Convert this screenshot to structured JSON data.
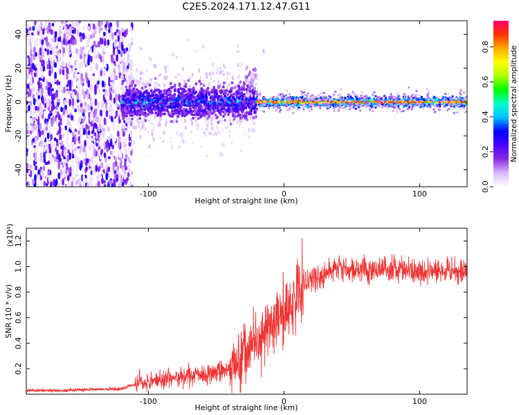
{
  "title": "C2E5.2024.171.12.47.G11",
  "chart_data": [
    {
      "type": "heatmap",
      "xlabel": "Height of straight line (km)",
      "ylabel": "Frequency (Hz)",
      "xlim": [
        -190,
        135
      ],
      "ylim": [
        -50,
        48
      ],
      "xticks": [
        -100,
        0,
        100
      ],
      "xtick_labels": [
        "-100",
        "0",
        "100"
      ],
      "yticks": [
        -40,
        -20,
        0,
        20,
        40
      ],
      "ytick_labels": [
        "-40",
        "-20",
        "0",
        "20",
        "40"
      ],
      "grid": false,
      "colorbar": {
        "label": "Normalized spectral amplitude",
        "range": [
          0,
          0.95
        ],
        "ticks": [
          0.0,
          0.2,
          0.4,
          0.6,
          0.8
        ],
        "tick_labels": [
          "0.0",
          "0.2",
          "0.4",
          "0.6",
          "0.8"
        ],
        "colormap": [
          "#ffffff",
          "#d9b8ff",
          "#8a2be2",
          "#4b00ff",
          "#0000ff",
          "#00bfff",
          "#00ffcc",
          "#00ff00",
          "#aaff00",
          "#ffff00",
          "#ffaa00",
          "#ff3300",
          "#ff0066"
        ]
      },
      "regions": [
        {
          "x_range": [
            -190,
            -112
          ],
          "freq_range": [
            -50,
            48
          ],
          "amplitude": "low, scattered"
        },
        {
          "x_range": [
            -120,
            -20
          ],
          "center_freq": 0,
          "half_width_hz": 7,
          "amplitude": "0.3-0.6"
        },
        {
          "x_range": [
            -20,
            135
          ],
          "center_freq": 0,
          "half_width_hz": 2,
          "amplitude": "0.5-0.9"
        }
      ]
    },
    {
      "type": "line",
      "xlabel": "Height of straight line (km)",
      "ylabel": "SNR (10 * v/v)",
      "y_scale_label": "(x10⁴)",
      "xlim": [
        -190,
        135
      ],
      "ylim": [
        0,
        1.3
      ],
      "xticks": [
        -100,
        0,
        100
      ],
      "xtick_labels": [
        "-100",
        "0",
        "100"
      ],
      "yticks": [
        0.2,
        0.4,
        0.6,
        0.8,
        1.0,
        1.2
      ],
      "ytick_labels": [
        "0.2",
        "0.4",
        "0.6",
        "0.8",
        "1.0",
        "1.2"
      ],
      "grid": false,
      "series": [
        {
          "color": "#ee3333",
          "x": [
            -190,
            -160,
            -140,
            -120,
            -110,
            -100,
            -80,
            -60,
            -40,
            -30,
            -20,
            -15,
            -10,
            -5,
            0,
            5,
            10,
            15,
            20,
            25,
            30,
            40,
            60,
            80,
            100,
            120,
            135
          ],
          "y": [
            0.03,
            0.03,
            0.04,
            0.04,
            0.08,
            0.1,
            0.13,
            0.15,
            0.2,
            0.3,
            0.4,
            0.48,
            0.55,
            0.6,
            0.65,
            0.7,
            0.78,
            0.85,
            0.9,
            0.93,
            0.95,
            0.97,
            0.98,
            0.98,
            0.96,
            0.97,
            0.95
          ]
        }
      ]
    }
  ]
}
